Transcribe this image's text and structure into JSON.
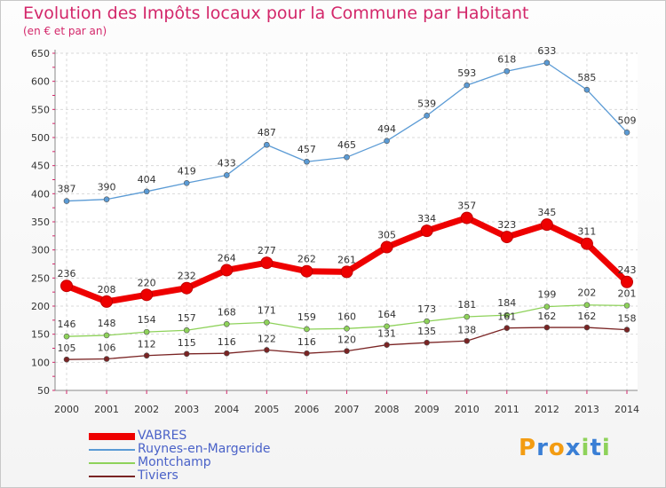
{
  "chart_data": {
    "type": "line",
    "title": "Evolution des Impôts locaux pour la Commune par Habitant",
    "subtitle": "(en € et par an)",
    "x": [
      "2000",
      "2001",
      "2002",
      "2003",
      "2004",
      "2005",
      "2006",
      "2007",
      "2008",
      "2009",
      "2010",
      "2011",
      "2012",
      "2013",
      "2014"
    ],
    "yticks": [
      50,
      100,
      150,
      200,
      250,
      300,
      350,
      400,
      450,
      500,
      550,
      600,
      650
    ],
    "ylim": [
      50,
      650
    ],
    "grid": true,
    "legend_position": "bottom-left",
    "series": [
      {
        "name": "Ruynes-en-Margeride",
        "color": "#5b9bd5",
        "values": [
          387,
          390,
          404,
          419,
          433,
          487,
          457,
          465,
          494,
          539,
          593,
          618,
          633,
          585,
          509
        ]
      },
      {
        "name": "Montchamp",
        "color": "#8ed25a",
        "values": [
          146,
          148,
          154,
          157,
          168,
          171,
          159,
          160,
          164,
          173,
          181,
          184,
          199,
          202,
          201
        ]
      },
      {
        "name": "Tiviers",
        "color": "#7a2424",
        "values": [
          105,
          106,
          112,
          115,
          116,
          122,
          116,
          120,
          131,
          135,
          138,
          161,
          162,
          162,
          158
        ]
      },
      {
        "name": "VABRES",
        "color": "#ee0000",
        "values": [
          236,
          208,
          220,
          232,
          264,
          277,
          262,
          261,
          305,
          334,
          357,
          323,
          345,
          311,
          243
        ]
      }
    ],
    "legend_order": [
      "VABRES",
      "Ruynes-en-Margeride",
      "Montchamp",
      "Tiviers"
    ]
  },
  "logo": {
    "letters": [
      "P",
      "r",
      "o",
      "x",
      "i",
      "t",
      "i"
    ],
    "colors": [
      "#f39c12",
      "#3a7fd5",
      "#f39c12",
      "#3a7fd5",
      "#8ed25a",
      "#3a7fd5",
      "#8ed25a"
    ]
  }
}
